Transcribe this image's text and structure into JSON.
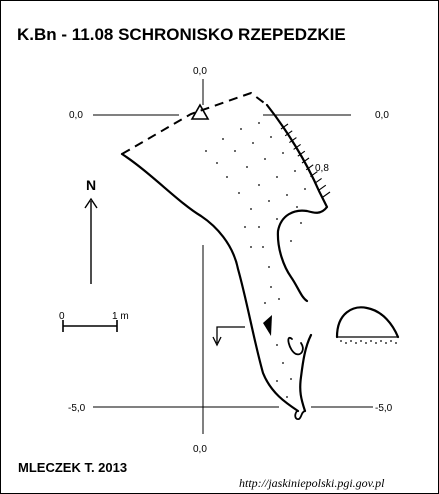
{
  "title": "K.Bn - 11.08  SCHRONISKO RZEPEDZKIE",
  "north_label": "N",
  "scale": {
    "start": "0",
    "end": "1 m"
  },
  "grid_labels": {
    "top_center": "0,0",
    "left_top": "0,0",
    "right_top": "0,0",
    "left_bottom": "-5,0",
    "right_bottom": "-5,0",
    "bottom_center": "0,0"
  },
  "depth_mark": "0,8",
  "author": "MLECZEK T. 2013",
  "source_url": "http://jaskiniepolski.pgi.gov.pl",
  "colors": {
    "ink": "#000000",
    "background": "#ffffff"
  }
}
